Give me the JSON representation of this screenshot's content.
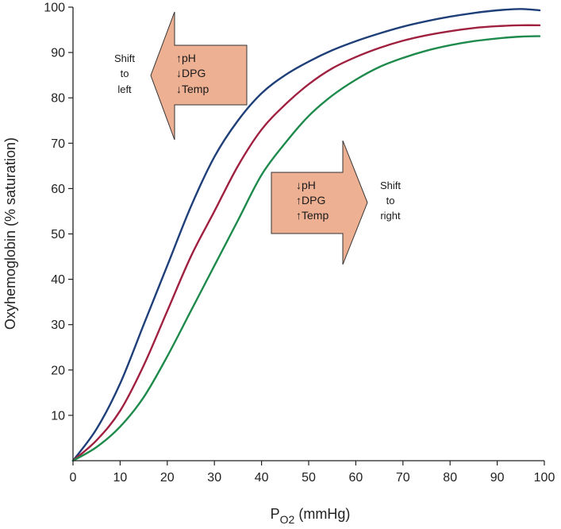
{
  "chart_data": {
    "type": "line",
    "xlabel": "P",
    "xlabel_sub": "O2",
    "xlabel_unit": " (mmHg)",
    "ylabel": "Oxyhemoglobin (% saturation)",
    "xlim": [
      0,
      100
    ],
    "ylim": [
      0,
      100
    ],
    "x_ticks": [
      0,
      10,
      20,
      30,
      40,
      50,
      60,
      70,
      80,
      90,
      100
    ],
    "y_ticks": [
      10,
      20,
      30,
      40,
      50,
      60,
      70,
      80,
      90,
      100
    ],
    "grid": false,
    "series": [
      {
        "color": "#1f3f78",
        "x": [
          0,
          5,
          10,
          15,
          20,
          25,
          30,
          35,
          40,
          45,
          50,
          55,
          60,
          65,
          70,
          75,
          80,
          85,
          90,
          95,
          99
        ],
        "y": [
          0,
          7,
          17,
          30,
          43,
          56,
          67,
          75,
          81,
          85,
          88,
          90.5,
          92.5,
          94.2,
          95.7,
          96.9,
          97.9,
          98.7,
          99.3,
          99.6,
          99.3
        ]
      },
      {
        "color": "#a0203f",
        "x": [
          0,
          5,
          10,
          15,
          20,
          25,
          30,
          35,
          40,
          45,
          50,
          55,
          60,
          65,
          70,
          75,
          80,
          85,
          90,
          95,
          99
        ],
        "y": [
          0,
          4.5,
          11,
          21,
          33,
          45,
          55,
          65,
          73,
          78.5,
          83,
          86.5,
          89,
          91,
          92.6,
          93.8,
          94.7,
          95.4,
          95.8,
          96,
          96
        ]
      },
      {
        "color": "#1e8a4c",
        "x": [
          0,
          5,
          10,
          15,
          20,
          25,
          30,
          35,
          40,
          45,
          50,
          55,
          60,
          65,
          70,
          75,
          80,
          85,
          90,
          95,
          99
        ],
        "y": [
          0,
          3,
          7.5,
          14,
          23,
          33,
          43,
          53,
          63,
          70,
          76,
          80.5,
          84,
          86.8,
          88.8,
          90.4,
          91.6,
          92.5,
          93.1,
          93.5,
          93.6
        ]
      }
    ],
    "annotations": {
      "left_shift": {
        "side_label": [
          "Shift",
          "to",
          "left"
        ],
        "arrow_lines": [
          "↑pH",
          "↓DPG",
          "↓Temp"
        ],
        "fill": "#eeb093"
      },
      "right_shift": {
        "side_label": [
          "Shift",
          "to",
          "right"
        ],
        "arrow_lines": [
          "↓pH",
          "↑DPG",
          "↑Temp"
        ],
        "fill": "#eeb093"
      }
    }
  }
}
